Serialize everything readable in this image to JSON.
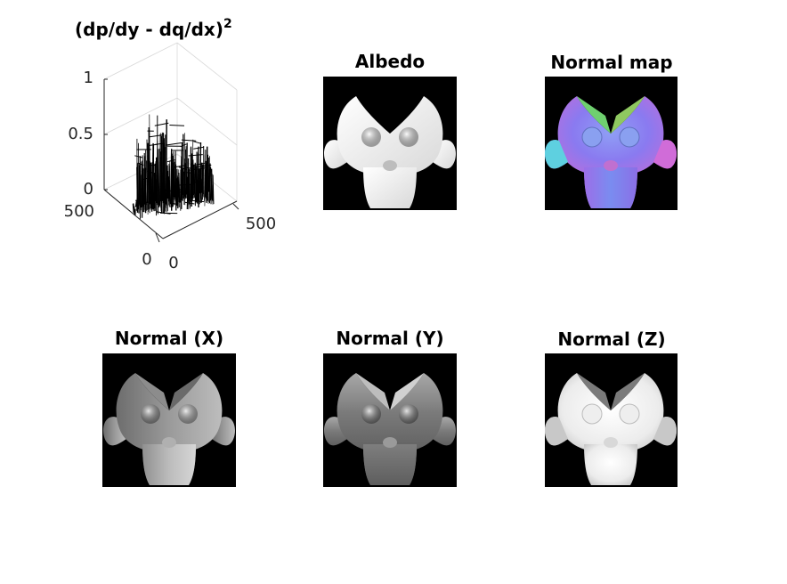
{
  "figure": {
    "surface_plot": {
      "title": "(dp/dy - dq/dx)",
      "title_exponent": "2",
      "z_ticks": [
        "0",
        "0.5",
        "1"
      ],
      "x_ticks": [
        "0",
        "500"
      ],
      "y_ticks": [
        "0",
        "500"
      ],
      "colors": {
        "mesh": "#000000",
        "axis": "#262626",
        "grid": "#d9d9d9"
      }
    },
    "chart_data": {
      "type": "surface",
      "title": "(dp/dy - dq/dx)^2",
      "zlim": [
        0,
        1
      ],
      "xlim": [
        0,
        500
      ],
      "ylim": [
        0,
        500
      ],
      "z_ticks": [
        0,
        0.5,
        1
      ],
      "x_ticks": [
        0,
        500
      ],
      "y_ticks": [
        0,
        500
      ],
      "profile_max": [
        0.1,
        0.62,
        0.48,
        0.55,
        0.85,
        0.6,
        0.5,
        0.85,
        0.72,
        0.8,
        0.45,
        0.6,
        0.5,
        0.35,
        0.55,
        0.6,
        0.45,
        0.55,
        0.4,
        0.5,
        0.42,
        0.45,
        0.48,
        0.3
      ]
    },
    "images": [
      {
        "title": "Albedo",
        "kind": "albedo"
      },
      {
        "title": "Normal map",
        "kind": "normal_rgb"
      },
      {
        "title": "Normal (X)",
        "kind": "nx"
      },
      {
        "title": "Normal (Y)",
        "kind": "ny"
      },
      {
        "title": "Normal (Z)",
        "kind": "nz"
      }
    ]
  }
}
